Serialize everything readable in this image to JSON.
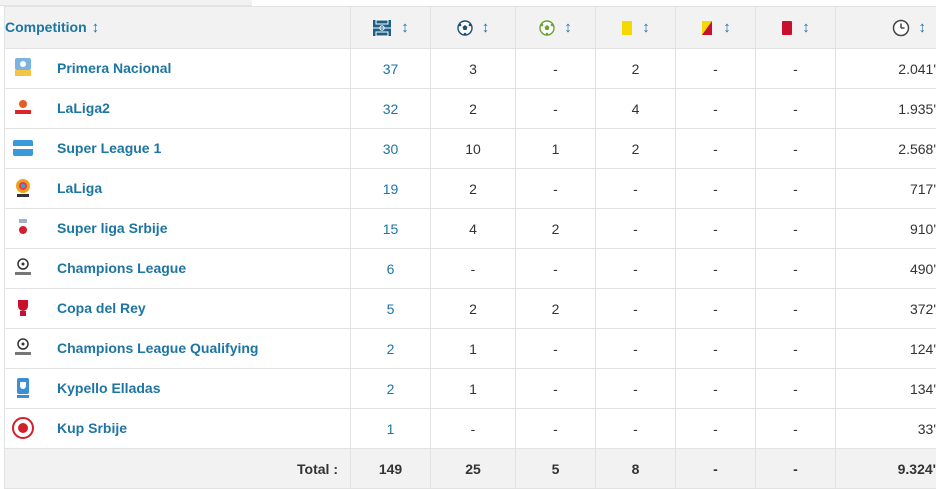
{
  "header": {
    "competition_label": "Competition",
    "sort_glyph": "↕",
    "icons": [
      "appearances-icon",
      "goals-icon",
      "assists-icon",
      "yellow-card-icon",
      "second-yellow-icon",
      "red-card-icon",
      "minutes-clock-icon"
    ]
  },
  "rows": [
    {
      "name": "Primera Nacional",
      "apps": "37",
      "goals": "3",
      "assists": "-",
      "yellow": "2",
      "yellowred": "-",
      "red": "-",
      "minutes": "2.041'",
      "logo": "primera-nacional-logo"
    },
    {
      "name": "LaLiga2",
      "apps": "32",
      "goals": "2",
      "assists": "-",
      "yellow": "4",
      "yellowred": "-",
      "red": "-",
      "minutes": "1.935'",
      "logo": "laliga2-logo"
    },
    {
      "name": "Super League 1",
      "apps": "30",
      "goals": "10",
      "assists": "1",
      "yellow": "2",
      "yellowred": "-",
      "red": "-",
      "minutes": "2.568'",
      "logo": "super-league-1-logo"
    },
    {
      "name": "LaLiga",
      "apps": "19",
      "goals": "2",
      "assists": "-",
      "yellow": "-",
      "yellowred": "-",
      "red": "-",
      "minutes": "717'",
      "logo": "laliga-logo"
    },
    {
      "name": "Super liga Srbije",
      "apps": "15",
      "goals": "4",
      "assists": "2",
      "yellow": "-",
      "yellowred": "-",
      "red": "-",
      "minutes": "910'",
      "logo": "super-liga-srbije-logo"
    },
    {
      "name": "Champions League",
      "apps": "6",
      "goals": "-",
      "assists": "-",
      "yellow": "-",
      "yellowred": "-",
      "red": "-",
      "minutes": "490'",
      "logo": "champions-league-logo"
    },
    {
      "name": "Copa del Rey",
      "apps": "5",
      "goals": "2",
      "assists": "2",
      "yellow": "-",
      "yellowred": "-",
      "red": "-",
      "minutes": "372'",
      "logo": "copa-del-rey-logo"
    },
    {
      "name": "Champions League Qualifying",
      "apps": "2",
      "goals": "1",
      "assists": "-",
      "yellow": "-",
      "yellowred": "-",
      "red": "-",
      "minutes": "124'",
      "logo": "champions-league-qualifying-logo"
    },
    {
      "name": "Kypello Elladas",
      "apps": "2",
      "goals": "1",
      "assists": "-",
      "yellow": "-",
      "yellowred": "-",
      "red": "-",
      "minutes": "134'",
      "logo": "kypello-elladas-logo"
    },
    {
      "name": "Kup Srbije",
      "apps": "1",
      "goals": "-",
      "assists": "-",
      "yellow": "-",
      "yellowred": "-",
      "red": "-",
      "minutes": "33'",
      "logo": "kup-srbije-logo"
    }
  ],
  "totals": {
    "label": "Total :",
    "apps": "149",
    "goals": "25",
    "assists": "5",
    "yellow": "8",
    "yellowred": "-",
    "red": "-",
    "minutes": "9.324'"
  },
  "colors": {
    "link": "#1d75a3",
    "header_bg": "#f2f2f2",
    "yellow_card": "#f5d800",
    "red_card": "#c8102e"
  }
}
